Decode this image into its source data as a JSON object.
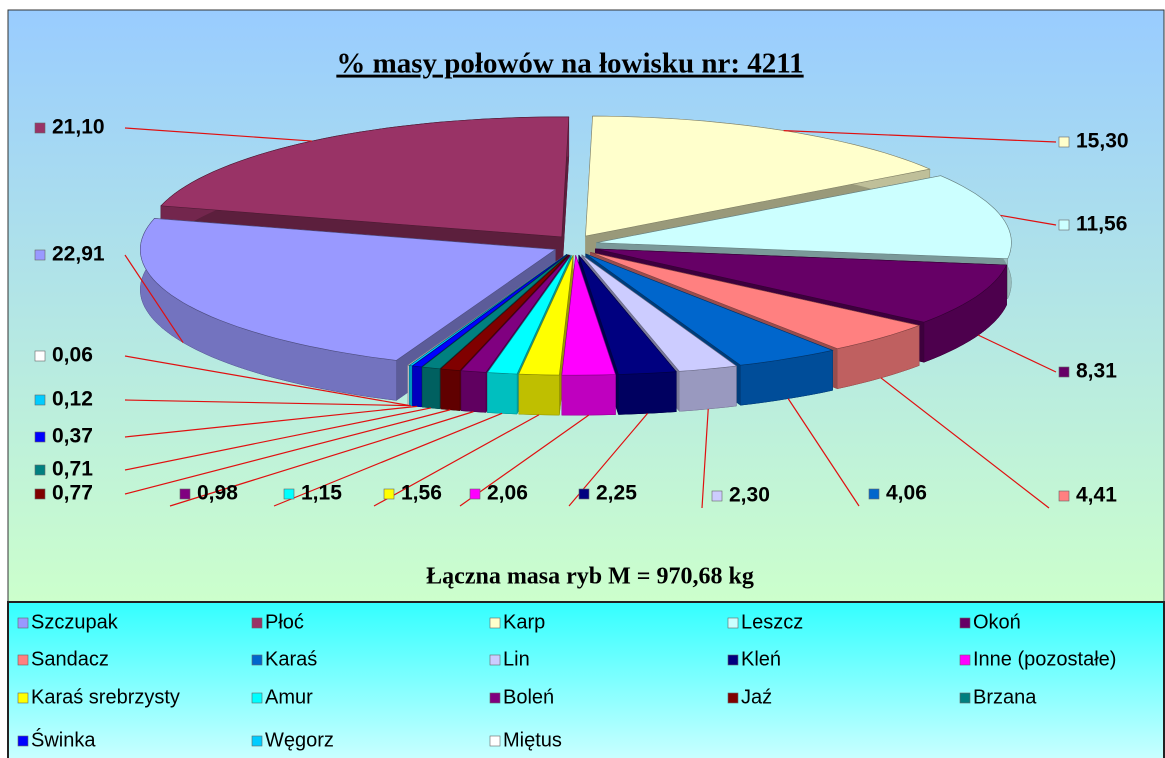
{
  "chart_data": {
    "type": "pie3d",
    "title": "% masy połowów na łowisku nr:  4211",
    "annotation": "Łączna masa ryb M = 970,68 kg",
    "categories": [
      "Szczupak",
      "Płoć",
      "Karp",
      "Leszcz",
      "Okoń",
      "Sandacz",
      "Karaś",
      "Lin",
      "Kleń",
      "Inne (pozostałe)",
      "Karaś srebrzysty",
      "Amur",
      "Boleń",
      "Jaź",
      "Brzana",
      "Świnka",
      "Węgorz",
      "Miętus"
    ],
    "values": [
      22.91,
      21.1,
      15.3,
      11.56,
      8.31,
      4.41,
      4.06,
      2.3,
      2.25,
      2.06,
      1.56,
      1.15,
      0.98,
      0.77,
      0.71,
      0.37,
      0.12,
      0.06
    ],
    "value_labels": [
      "22,91",
      "21,10",
      "15,30",
      "11,56",
      "8,31",
      "4,41",
      "4,06",
      "2,30",
      "2,25",
      "2,06",
      "1,56",
      "1,15",
      "0,98",
      "0,77",
      "0,71",
      "0,37",
      "0,12",
      "0,06"
    ],
    "colors": [
      "#9999ff",
      "#993366",
      "#ffffcc",
      "#ccffff",
      "#660066",
      "#ff8080",
      "#0066cc",
      "#ccccff",
      "#000080",
      "#ff00ff",
      "#ffff00",
      "#00ffff",
      "#800080",
      "#800000",
      "#008080",
      "#0000ff",
      "#00ccff",
      "#ffffff"
    ],
    "legend": "bottom"
  }
}
